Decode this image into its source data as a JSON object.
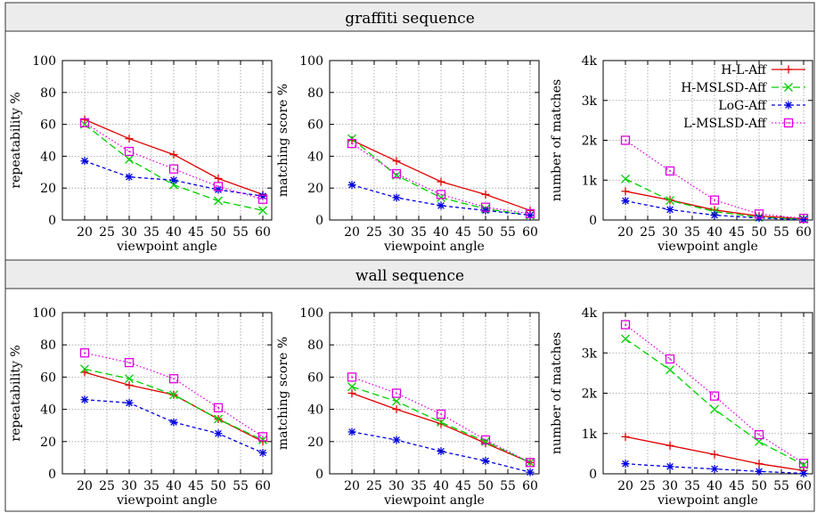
{
  "sections": [
    {
      "title": "graffiti sequence"
    },
    {
      "title": "wall sequence"
    }
  ],
  "legend": [
    {
      "label": "H-L-Aff",
      "color": "#e00000",
      "dash": "solid",
      "marker": "plus"
    },
    {
      "label": "H-MSLSD-Aff",
      "color": "#00d000",
      "dash": "long-dash",
      "marker": "cross"
    },
    {
      "label": "LoG-Aff",
      "color": "#0000e0",
      "dash": "short-dash",
      "marker": "star"
    },
    {
      "label": "L-MSLSD-Aff",
      "color": "#e000e0",
      "dash": "dotted",
      "marker": "square-dot"
    }
  ],
  "chart_data": [
    {
      "type": "line",
      "section": "graffiti sequence",
      "xlabel": "viewpoint angle",
      "ylabel": "repeatability %",
      "xlim": [
        15,
        62
      ],
      "ylim": [
        0,
        100
      ],
      "xticks": [
        20,
        25,
        30,
        35,
        40,
        45,
        50,
        55,
        60
      ],
      "yticks": [
        0,
        20,
        40,
        60,
        80,
        100
      ],
      "ytick_labels": [
        "0",
        "20",
        "40",
        "60",
        "80",
        "100"
      ],
      "grid": true,
      "legend": "none",
      "x": [
        20,
        30,
        40,
        50,
        60
      ],
      "series": [
        {
          "name": "H-L-Aff",
          "values": [
            63,
            51,
            41,
            26,
            16
          ]
        },
        {
          "name": "H-MSLSD-Aff",
          "values": [
            60,
            38,
            22,
            12,
            6
          ]
        },
        {
          "name": "LoG-Aff",
          "values": [
            37,
            27,
            25,
            19,
            15
          ]
        },
        {
          "name": "L-MSLSD-Aff",
          "values": [
            61,
            43,
            32,
            21,
            13
          ]
        }
      ]
    },
    {
      "type": "line",
      "section": "graffiti sequence",
      "xlabel": "viewpoint angle",
      "ylabel": "matching score %",
      "xlim": [
        15,
        62
      ],
      "ylim": [
        0,
        100
      ],
      "xticks": [
        20,
        25,
        30,
        35,
        40,
        45,
        50,
        55,
        60
      ],
      "yticks": [
        0,
        20,
        40,
        60,
        80,
        100
      ],
      "ytick_labels": [
        "0",
        "20",
        "40",
        "60",
        "80",
        "100"
      ],
      "grid": true,
      "legend": "none",
      "x": [
        20,
        30,
        40,
        50,
        60
      ],
      "series": [
        {
          "name": "H-L-Aff",
          "values": [
            50,
            37,
            24,
            16,
            6
          ]
        },
        {
          "name": "H-MSLSD-Aff",
          "values": [
            51,
            28,
            14,
            7,
            3
          ]
        },
        {
          "name": "LoG-Aff",
          "values": [
            22,
            14,
            9,
            6,
            3
          ]
        },
        {
          "name": "L-MSLSD-Aff",
          "values": [
            48,
            29,
            16,
            8,
            4
          ]
        }
      ]
    },
    {
      "type": "line",
      "section": "graffiti sequence",
      "xlabel": "viewpoint angle",
      "ylabel": "number of matches",
      "xlim": [
        15,
        62
      ],
      "ylim": [
        0,
        4000
      ],
      "xticks": [
        20,
        25,
        30,
        35,
        40,
        45,
        50,
        55,
        60
      ],
      "yticks": [
        0,
        1000,
        2000,
        3000,
        4000
      ],
      "ytick_labels": [
        "0",
        "1k",
        "2k",
        "3k",
        "4k"
      ],
      "grid": true,
      "legend": "top-right",
      "x": [
        20,
        30,
        40,
        50,
        60
      ],
      "series": [
        {
          "name": "H-L-Aff",
          "values": [
            720,
            500,
            250,
            100,
            30
          ]
        },
        {
          "name": "H-MSLSD-Aff",
          "values": [
            1030,
            490,
            210,
            70,
            20
          ]
        },
        {
          "name": "LoG-Aff",
          "values": [
            480,
            260,
            120,
            50,
            10
          ]
        },
        {
          "name": "L-MSLSD-Aff",
          "values": [
            2000,
            1230,
            500,
            150,
            40
          ]
        }
      ]
    },
    {
      "type": "line",
      "section": "wall sequence",
      "xlabel": "viewpoint angle",
      "ylabel": "repeatability %",
      "xlim": [
        15,
        62
      ],
      "ylim": [
        0,
        100
      ],
      "xticks": [
        20,
        25,
        30,
        35,
        40,
        45,
        50,
        55,
        60
      ],
      "yticks": [
        0,
        20,
        40,
        60,
        80,
        100
      ],
      "ytick_labels": [
        "0",
        "20",
        "40",
        "60",
        "80",
        "100"
      ],
      "grid": true,
      "legend": "none",
      "x": [
        20,
        30,
        40,
        50,
        60
      ],
      "series": [
        {
          "name": "H-L-Aff",
          "values": [
            63,
            55,
            49,
            34,
            20
          ]
        },
        {
          "name": "H-MSLSD-Aff",
          "values": [
            65,
            59,
            49,
            34,
            21
          ]
        },
        {
          "name": "LoG-Aff",
          "values": [
            46,
            44,
            32,
            25,
            13
          ]
        },
        {
          "name": "L-MSLSD-Aff",
          "values": [
            75,
            69,
            59,
            41,
            23
          ]
        }
      ]
    },
    {
      "type": "line",
      "section": "wall sequence",
      "xlabel": "viewpoint angle",
      "ylabel": "matching score %",
      "xlim": [
        15,
        62
      ],
      "ylim": [
        0,
        100
      ],
      "xticks": [
        20,
        25,
        30,
        35,
        40,
        45,
        50,
        55,
        60
      ],
      "yticks": [
        0,
        20,
        40,
        60,
        80,
        100
      ],
      "ytick_labels": [
        "0",
        "20",
        "40",
        "60",
        "80",
        "100"
      ],
      "grid": true,
      "legend": "none",
      "x": [
        20,
        30,
        40,
        50,
        60
      ],
      "series": [
        {
          "name": "H-L-Aff",
          "values": [
            50,
            40,
            31,
            19,
            7
          ]
        },
        {
          "name": "H-MSLSD-Aff",
          "values": [
            54,
            45,
            32,
            20,
            7
          ]
        },
        {
          "name": "LoG-Aff",
          "values": [
            26,
            21,
            14,
            8,
            1
          ]
        },
        {
          "name": "L-MSLSD-Aff",
          "values": [
            60,
            50,
            37,
            21,
            7
          ]
        }
      ]
    },
    {
      "type": "line",
      "section": "wall sequence",
      "xlabel": "viewpoint angle",
      "ylabel": "number of matches",
      "xlim": [
        15,
        62
      ],
      "ylim": [
        0,
        4000
      ],
      "xticks": [
        20,
        25,
        30,
        35,
        40,
        45,
        50,
        55,
        60
      ],
      "yticks": [
        0,
        1000,
        2000,
        3000,
        4000
      ],
      "ytick_labels": [
        "0",
        "1k",
        "2k",
        "3k",
        "4k"
      ],
      "grid": true,
      "legend": "none",
      "x": [
        20,
        30,
        40,
        50,
        60
      ],
      "series": [
        {
          "name": "H-L-Aff",
          "values": [
            920,
            700,
            480,
            250,
            80
          ]
        },
        {
          "name": "H-MSLSD-Aff",
          "values": [
            3350,
            2580,
            1600,
            800,
            220
          ]
        },
        {
          "name": "LoG-Aff",
          "values": [
            250,
            180,
            120,
            60,
            10
          ]
        },
        {
          "name": "L-MSLSD-Aff",
          "values": [
            3700,
            2850,
            1930,
            970,
            260
          ]
        }
      ]
    }
  ]
}
